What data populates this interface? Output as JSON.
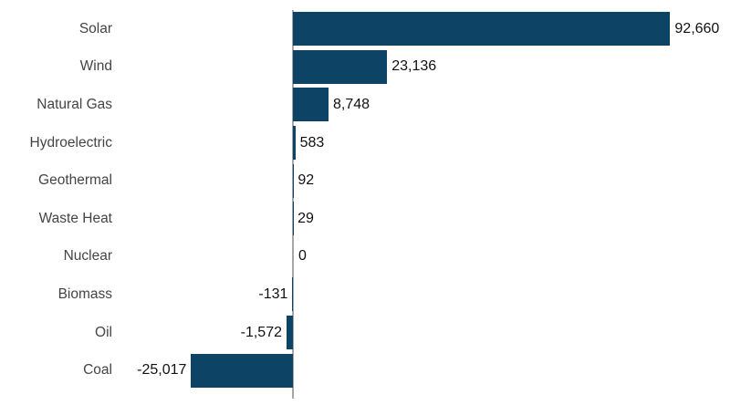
{
  "chart_data": {
    "type": "bar",
    "orientation": "horizontal",
    "title": "",
    "categories": [
      "Solar",
      "Wind",
      "Natural Gas",
      "Hydroelectric",
      "Geothermal",
      "Waste Heat",
      "Nuclear",
      "Biomass",
      "Oil",
      "Coal"
    ],
    "values": [
      92660,
      23136,
      8748,
      583,
      92,
      29,
      0,
      -131,
      -1572,
      -25017
    ],
    "value_labels": [
      "92,660",
      "23,136",
      "8,748",
      "583",
      "92",
      "29",
      "0",
      "-131",
      "-1,572",
      "-25,017"
    ],
    "xlim": [
      -25017,
      92660
    ],
    "baseline": 0,
    "grid": false,
    "legend": false,
    "value_axis_visible": false,
    "bar_color": "#0d4365",
    "axis_line_color": "#a6a6a6",
    "category_label_color": "#444444",
    "value_label_color": "#111111"
  }
}
